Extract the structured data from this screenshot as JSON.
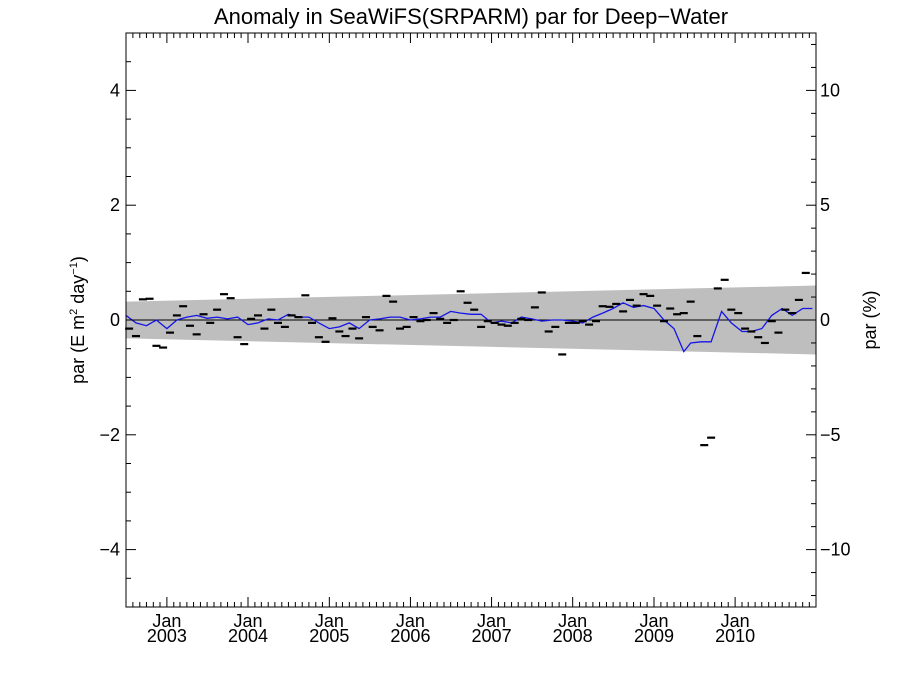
{
  "chart_data": {
    "type": "scatter",
    "title": "Anomaly in SeaWiFS(SRPARM) par for Deep−Water",
    "ylabel_left": {
      "main": "par (E m",
      "sup1": "2",
      "mid": " day",
      "sup2": "−1",
      "end": ")"
    },
    "ylabel_right": "par (%)",
    "xlim": [
      "2002-07-01",
      "2010-12-31"
    ],
    "ylim": [
      -5,
      5
    ],
    "ylim_right": [
      -12.5,
      12.5
    ],
    "yticks_left": [
      {
        "value": 4,
        "label": "4"
      },
      {
        "value": 2,
        "label": "2"
      },
      {
        "value": 0,
        "label": "0"
      },
      {
        "value": -2,
        "label": "−2"
      },
      {
        "value": -4,
        "label": "−4"
      }
    ],
    "yticks_right": [
      {
        "value": 10,
        "label": "10"
      },
      {
        "value": 5,
        "label": "5"
      },
      {
        "value": 0,
        "label": "0"
      },
      {
        "value": -5,
        "label": "−5"
      },
      {
        "value": -10,
        "label": "−10"
      }
    ],
    "xticks": [
      {
        "date": "2003-01-01",
        "month": "Jan",
        "year": "2003"
      },
      {
        "date": "2004-01-01",
        "month": "Jan",
        "year": "2004"
      },
      {
        "date": "2005-01-01",
        "month": "Jan",
        "year": "2005"
      },
      {
        "date": "2006-01-01",
        "month": "Jan",
        "year": "2006"
      },
      {
        "date": "2007-01-01",
        "month": "Jan",
        "year": "2007"
      },
      {
        "date": "2008-01-01",
        "month": "Jan",
        "year": "2008"
      },
      {
        "date": "2009-01-01",
        "month": "Jan",
        "year": "2009"
      },
      {
        "date": "2010-01-01",
        "month": "Jan",
        "year": "2010"
      }
    ],
    "confidence_band": {
      "start_date": "2002-07-01",
      "end_date": "2010-12-31",
      "upper_start": 0.32,
      "upper_end": 0.6,
      "lower_start": -0.32,
      "lower_end": -0.6,
      "color": "#bebebe"
    },
    "zero_line": 0,
    "monthly_anomalies": [
      {
        "date": "2002-07-15",
        "y": -0.15
      },
      {
        "date": "2002-08-15",
        "y": -0.28
      },
      {
        "date": "2002-09-15",
        "y": 0.36
      },
      {
        "date": "2002-10-15",
        "y": 0.37
      },
      {
        "date": "2002-11-15",
        "y": -0.45
      },
      {
        "date": "2002-12-15",
        "y": -0.48
      },
      {
        "date": "2003-01-15",
        "y": -0.22
      },
      {
        "date": "2003-02-15",
        "y": 0.08
      },
      {
        "date": "2003-03-15",
        "y": 0.24
      },
      {
        "date": "2003-04-15",
        "y": -0.1
      },
      {
        "date": "2003-05-15",
        "y": -0.25
      },
      {
        "date": "2003-06-15",
        "y": 0.1
      },
      {
        "date": "2003-07-15",
        "y": -0.05
      },
      {
        "date": "2003-08-15",
        "y": 0.18
      },
      {
        "date": "2003-09-15",
        "y": 0.45
      },
      {
        "date": "2003-10-15",
        "y": 0.38
      },
      {
        "date": "2003-11-15",
        "y": -0.3
      },
      {
        "date": "2003-12-15",
        "y": -0.42
      },
      {
        "date": "2004-01-15",
        "y": 0.02
      },
      {
        "date": "2004-02-15",
        "y": 0.08
      },
      {
        "date": "2004-03-15",
        "y": -0.15
      },
      {
        "date": "2004-04-15",
        "y": 0.18
      },
      {
        "date": "2004-05-15",
        "y": -0.05
      },
      {
        "date": "2004-06-15",
        "y": -0.12
      },
      {
        "date": "2004-07-15",
        "y": 0.08
      },
      {
        "date": "2004-08-15",
        "y": 0.05
      },
      {
        "date": "2004-09-15",
        "y": 0.43
      },
      {
        "date": "2004-10-15",
        "y": -0.05
      },
      {
        "date": "2004-11-15",
        "y": -0.3
      },
      {
        "date": "2004-12-15",
        "y": -0.38
      },
      {
        "date": "2005-01-15",
        "y": 0.03
      },
      {
        "date": "2005-02-15",
        "y": -0.2
      },
      {
        "date": "2005-03-15",
        "y": -0.28
      },
      {
        "date": "2005-04-15",
        "y": -0.15
      },
      {
        "date": "2005-05-15",
        "y": -0.32
      },
      {
        "date": "2005-06-15",
        "y": 0.05
      },
      {
        "date": "2005-07-15",
        "y": -0.12
      },
      {
        "date": "2005-08-15",
        "y": -0.18
      },
      {
        "date": "2005-09-15",
        "y": 0.42
      },
      {
        "date": "2005-10-15",
        "y": 0.32
      },
      {
        "date": "2005-11-15",
        "y": -0.15
      },
      {
        "date": "2005-12-15",
        "y": -0.12
      },
      {
        "date": "2006-01-15",
        "y": 0.05
      },
      {
        "date": "2006-02-15",
        "y": -0.02
      },
      {
        "date": "2006-03-15",
        "y": 0.0
      },
      {
        "date": "2006-04-15",
        "y": 0.12
      },
      {
        "date": "2006-05-15",
        "y": 0.02
      },
      {
        "date": "2006-06-15",
        "y": -0.05
      },
      {
        "date": "2006-07-15",
        "y": 0.0
      },
      {
        "date": "2006-08-15",
        "y": 0.5
      },
      {
        "date": "2006-09-15",
        "y": 0.3
      },
      {
        "date": "2006-10-15",
        "y": 0.18
      },
      {
        "date": "2006-11-15",
        "y": -0.12
      },
      {
        "date": "2006-12-15",
        "y": -0.02
      },
      {
        "date": "2007-01-15",
        "y": -0.05
      },
      {
        "date": "2007-02-15",
        "y": -0.08
      },
      {
        "date": "2007-03-15",
        "y": -0.1
      },
      {
        "date": "2007-04-15",
        "y": -0.05
      },
      {
        "date": "2007-05-15",
        "y": 0.02
      },
      {
        "date": "2007-06-15",
        "y": 0.0
      },
      {
        "date": "2007-07-15",
        "y": 0.22
      },
      {
        "date": "2007-08-15",
        "y": 0.48
      },
      {
        "date": "2007-09-15",
        "y": -0.2
      },
      {
        "date": "2007-10-15",
        "y": -0.12
      },
      {
        "date": "2007-11-15",
        "y": -0.6
      },
      {
        "date": "2007-12-15",
        "y": -0.05
      },
      {
        "date": "2008-01-15",
        "y": -0.05
      },
      {
        "date": "2008-02-15",
        "y": -0.02
      },
      {
        "date": "2008-03-15",
        "y": -0.08
      },
      {
        "date": "2008-04-15",
        "y": -0.02
      },
      {
        "date": "2008-05-15",
        "y": 0.24
      },
      {
        "date": "2008-06-15",
        "y": 0.23
      },
      {
        "date": "2008-07-15",
        "y": 0.28
      },
      {
        "date": "2008-08-15",
        "y": 0.15
      },
      {
        "date": "2008-09-15",
        "y": 0.35
      },
      {
        "date": "2008-10-15",
        "y": 0.25
      },
      {
        "date": "2008-11-15",
        "y": 0.45
      },
      {
        "date": "2008-12-15",
        "y": 0.42
      },
      {
        "date": "2009-01-15",
        "y": 0.25
      },
      {
        "date": "2009-02-15",
        "y": -0.02
      },
      {
        "date": "2009-03-15",
        "y": 0.2
      },
      {
        "date": "2009-04-15",
        "y": 0.1
      },
      {
        "date": "2009-05-15",
        "y": 0.12
      },
      {
        "date": "2009-06-15",
        "y": 0.32
      },
      {
        "date": "2009-07-15",
        "y": -0.28
      },
      {
        "date": "2009-08-15",
        "y": -2.18
      },
      {
        "date": "2009-09-15",
        "y": -2.05
      },
      {
        "date": "2009-10-15",
        "y": 0.55
      },
      {
        "date": "2009-11-15",
        "y": 0.7
      },
      {
        "date": "2009-12-15",
        "y": 0.18
      },
      {
        "date": "2010-01-15",
        "y": 0.12
      },
      {
        "date": "2010-02-15",
        "y": -0.15
      },
      {
        "date": "2010-03-15",
        "y": -0.2
      },
      {
        "date": "2010-04-15",
        "y": -0.3
      },
      {
        "date": "2010-05-15",
        "y": -0.4
      },
      {
        "date": "2010-06-15",
        "y": -0.02
      },
      {
        "date": "2010-07-15",
        "y": -0.22
      },
      {
        "date": "2010-08-15",
        "y": 0.18
      },
      {
        "date": "2010-09-15",
        "y": 0.12
      },
      {
        "date": "2010-10-15",
        "y": 0.35
      },
      {
        "date": "2010-11-15",
        "y": 0.82
      }
    ],
    "running_mean": [
      {
        "date": "2002-07-01",
        "y": 0.08
      },
      {
        "date": "2002-08-15",
        "y": -0.05
      },
      {
        "date": "2002-10-01",
        "y": -0.1
      },
      {
        "date": "2002-11-15",
        "y": 0.0
      },
      {
        "date": "2003-01-01",
        "y": -0.15
      },
      {
        "date": "2003-02-15",
        "y": 0.0
      },
      {
        "date": "2003-04-01",
        "y": 0.05
      },
      {
        "date": "2003-05-15",
        "y": 0.08
      },
      {
        "date": "2003-07-01",
        "y": 0.03
      },
      {
        "date": "2003-08-15",
        "y": 0.05
      },
      {
        "date": "2003-10-01",
        "y": 0.02
      },
      {
        "date": "2003-11-15",
        "y": 0.05
      },
      {
        "date": "2004-01-01",
        "y": -0.08
      },
      {
        "date": "2004-02-15",
        "y": -0.05
      },
      {
        "date": "2004-04-01",
        "y": 0.02
      },
      {
        "date": "2004-05-15",
        "y": 0.0
      },
      {
        "date": "2004-07-01",
        "y": 0.1
      },
      {
        "date": "2004-08-15",
        "y": 0.05
      },
      {
        "date": "2004-10-01",
        "y": 0.05
      },
      {
        "date": "2004-11-15",
        "y": -0.05
      },
      {
        "date": "2005-01-01",
        "y": -0.15
      },
      {
        "date": "2005-02-15",
        "y": -0.12
      },
      {
        "date": "2005-04-01",
        "y": -0.05
      },
      {
        "date": "2005-05-15",
        "y": -0.15
      },
      {
        "date": "2005-07-01",
        "y": 0.0
      },
      {
        "date": "2005-08-15",
        "y": 0.02
      },
      {
        "date": "2005-10-01",
        "y": 0.05
      },
      {
        "date": "2005-11-15",
        "y": 0.05
      },
      {
        "date": "2006-01-01",
        "y": 0.0
      },
      {
        "date": "2006-02-15",
        "y": 0.02
      },
      {
        "date": "2006-04-01",
        "y": 0.05
      },
      {
        "date": "2006-05-15",
        "y": 0.05
      },
      {
        "date": "2006-07-01",
        "y": 0.15
      },
      {
        "date": "2006-08-15",
        "y": 0.12
      },
      {
        "date": "2006-10-01",
        "y": 0.1
      },
      {
        "date": "2006-11-15",
        "y": 0.1
      },
      {
        "date": "2007-01-01",
        "y": -0.05
      },
      {
        "date": "2007-02-15",
        "y": -0.02
      },
      {
        "date": "2007-04-01",
        "y": -0.05
      },
      {
        "date": "2007-05-15",
        "y": 0.05
      },
      {
        "date": "2007-07-01",
        "y": 0.02
      },
      {
        "date": "2007-08-15",
        "y": -0.02
      },
      {
        "date": "2007-10-01",
        "y": 0.0
      },
      {
        "date": "2007-11-15",
        "y": 0.0
      },
      {
        "date": "2008-01-01",
        "y": -0.02
      },
      {
        "date": "2008-02-15",
        "y": -0.05
      },
      {
        "date": "2008-04-01",
        "y": 0.05
      },
      {
        "date": "2008-05-15",
        "y": 0.12
      },
      {
        "date": "2008-07-01",
        "y": 0.2
      },
      {
        "date": "2008-08-15",
        "y": 0.3
      },
      {
        "date": "2008-10-01",
        "y": 0.22
      },
      {
        "date": "2008-11-15",
        "y": 0.25
      },
      {
        "date": "2009-01-01",
        "y": 0.2
      },
      {
        "date": "2009-02-15",
        "y": 0.0
      },
      {
        "date": "2009-04-01",
        "y": -0.15
      },
      {
        "date": "2009-05-15",
        "y": -0.55
      },
      {
        "date": "2009-06-15",
        "y": -0.4
      },
      {
        "date": "2009-08-01",
        "y": -0.38
      },
      {
        "date": "2009-09-15",
        "y": -0.38
      },
      {
        "date": "2009-11-01",
        "y": 0.15
      },
      {
        "date": "2009-12-15",
        "y": -0.05
      },
      {
        "date": "2010-02-01",
        "y": -0.2
      },
      {
        "date": "2010-03-15",
        "y": -0.2
      },
      {
        "date": "2010-05-01",
        "y": -0.15
      },
      {
        "date": "2010-06-15",
        "y": 0.08
      },
      {
        "date": "2010-08-01",
        "y": 0.2
      },
      {
        "date": "2010-09-15",
        "y": 0.08
      },
      {
        "date": "2010-11-01",
        "y": 0.2
      },
      {
        "date": "2010-12-15",
        "y": 0.2
      }
    ],
    "colors": {
      "running_mean": "#1515e6",
      "points": "#000000",
      "band": "#bebebe",
      "axes": "#000000"
    },
    "grid": false,
    "legend": "none"
  }
}
